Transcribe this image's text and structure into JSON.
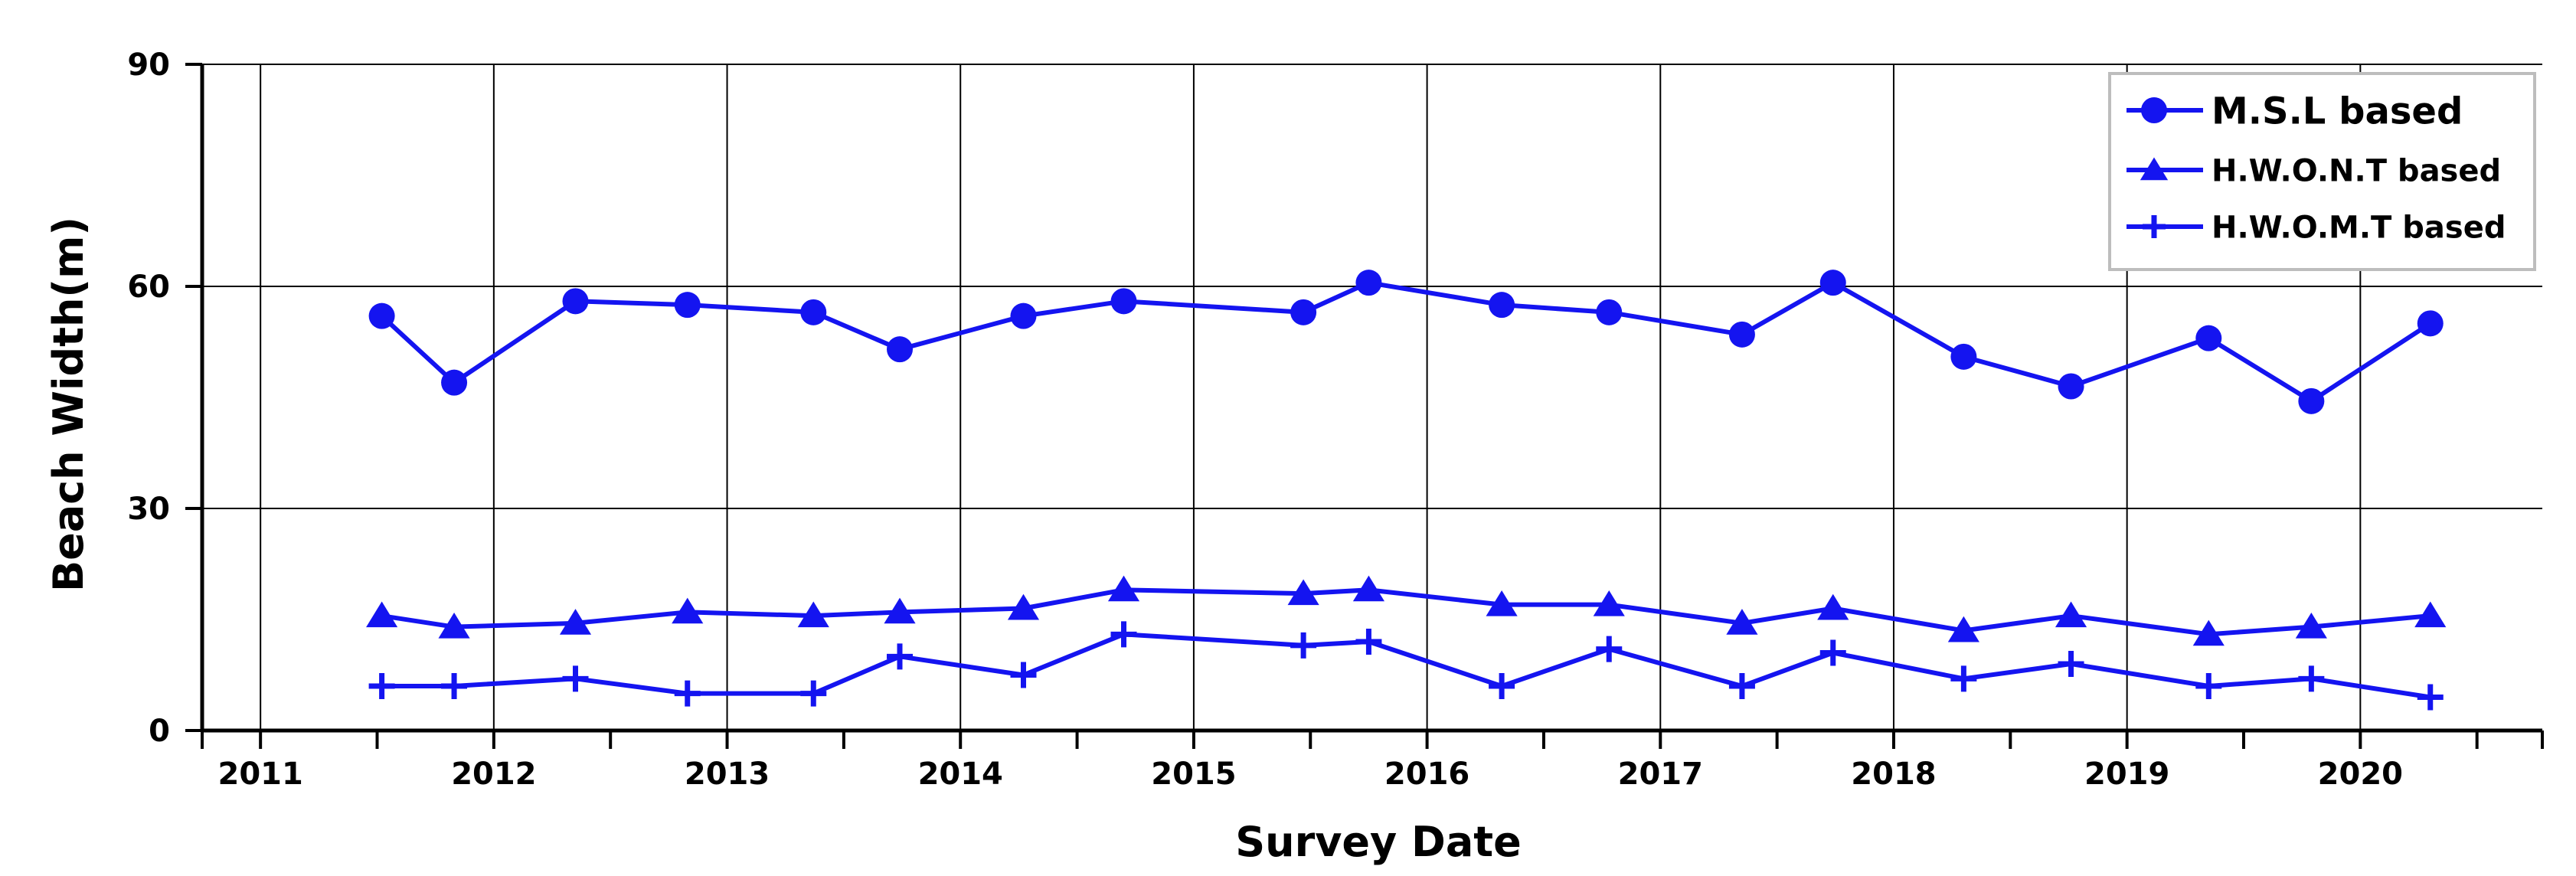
{
  "chart_data": {
    "type": "line",
    "xlabel": "Survey Date",
    "ylabel": "Beach Width(m)",
    "xlim": [
      2010.75,
      2020.78
    ],
    "ylim": [
      0,
      90
    ],
    "x_ticks": [
      "2011",
      "2012",
      "2013",
      "2014",
      "2015",
      "2016",
      "2017",
      "2018",
      "2019",
      "2020"
    ],
    "y_ticks": [
      "0",
      "30",
      "60",
      "90"
    ],
    "grid": true,
    "legend_position": "top-right",
    "colors": {
      "series": "#1414f0",
      "grid": "#000000",
      "legend_border": "#bdbdbd"
    },
    "series": [
      {
        "name": "M.S.L based",
        "marker": "circle",
        "x": [
          2011.52,
          2011.83,
          2012.35,
          2012.83,
          2013.37,
          2013.74,
          2014.27,
          2014.7,
          2015.47,
          2015.75,
          2016.32,
          2016.78,
          2017.35,
          2017.74,
          2018.3,
          2018.76,
          2019.35,
          2019.79,
          2020.3
        ],
        "y": [
          56,
          47,
          58,
          57.5,
          56.5,
          51.5,
          56,
          58,
          56.5,
          60.5,
          57.5,
          56.5,
          53.5,
          60.5,
          50.5,
          46.5,
          53,
          44.5,
          55
        ]
      },
      {
        "name": "H.W.O.N.T based",
        "marker": "triangle",
        "x": [
          2011.52,
          2011.83,
          2012.35,
          2012.83,
          2013.37,
          2013.74,
          2014.27,
          2014.7,
          2015.47,
          2015.75,
          2016.32,
          2016.78,
          2017.35,
          2017.74,
          2018.3,
          2018.76,
          2019.35,
          2019.79,
          2020.3
        ],
        "y": [
          15.5,
          14,
          14.5,
          16,
          15.5,
          16,
          16.5,
          19,
          18.5,
          19,
          17,
          17,
          14.5,
          16.5,
          13.5,
          15.5,
          13,
          14,
          15.5
        ]
      },
      {
        "name": "H.W.O.M.T based",
        "marker": "plus",
        "x": [
          2011.52,
          2011.83,
          2012.35,
          2012.83,
          2013.37,
          2013.74,
          2014.27,
          2014.7,
          2015.47,
          2015.75,
          2016.32,
          2016.78,
          2017.35,
          2017.74,
          2018.3,
          2018.76,
          2019.35,
          2019.79,
          2020.3
        ],
        "y": [
          6,
          6,
          7,
          5,
          5,
          10,
          7.5,
          13,
          11.5,
          12,
          6,
          11,
          6,
          10.5,
          7,
          9,
          6,
          7,
          4.5
        ]
      }
    ]
  }
}
